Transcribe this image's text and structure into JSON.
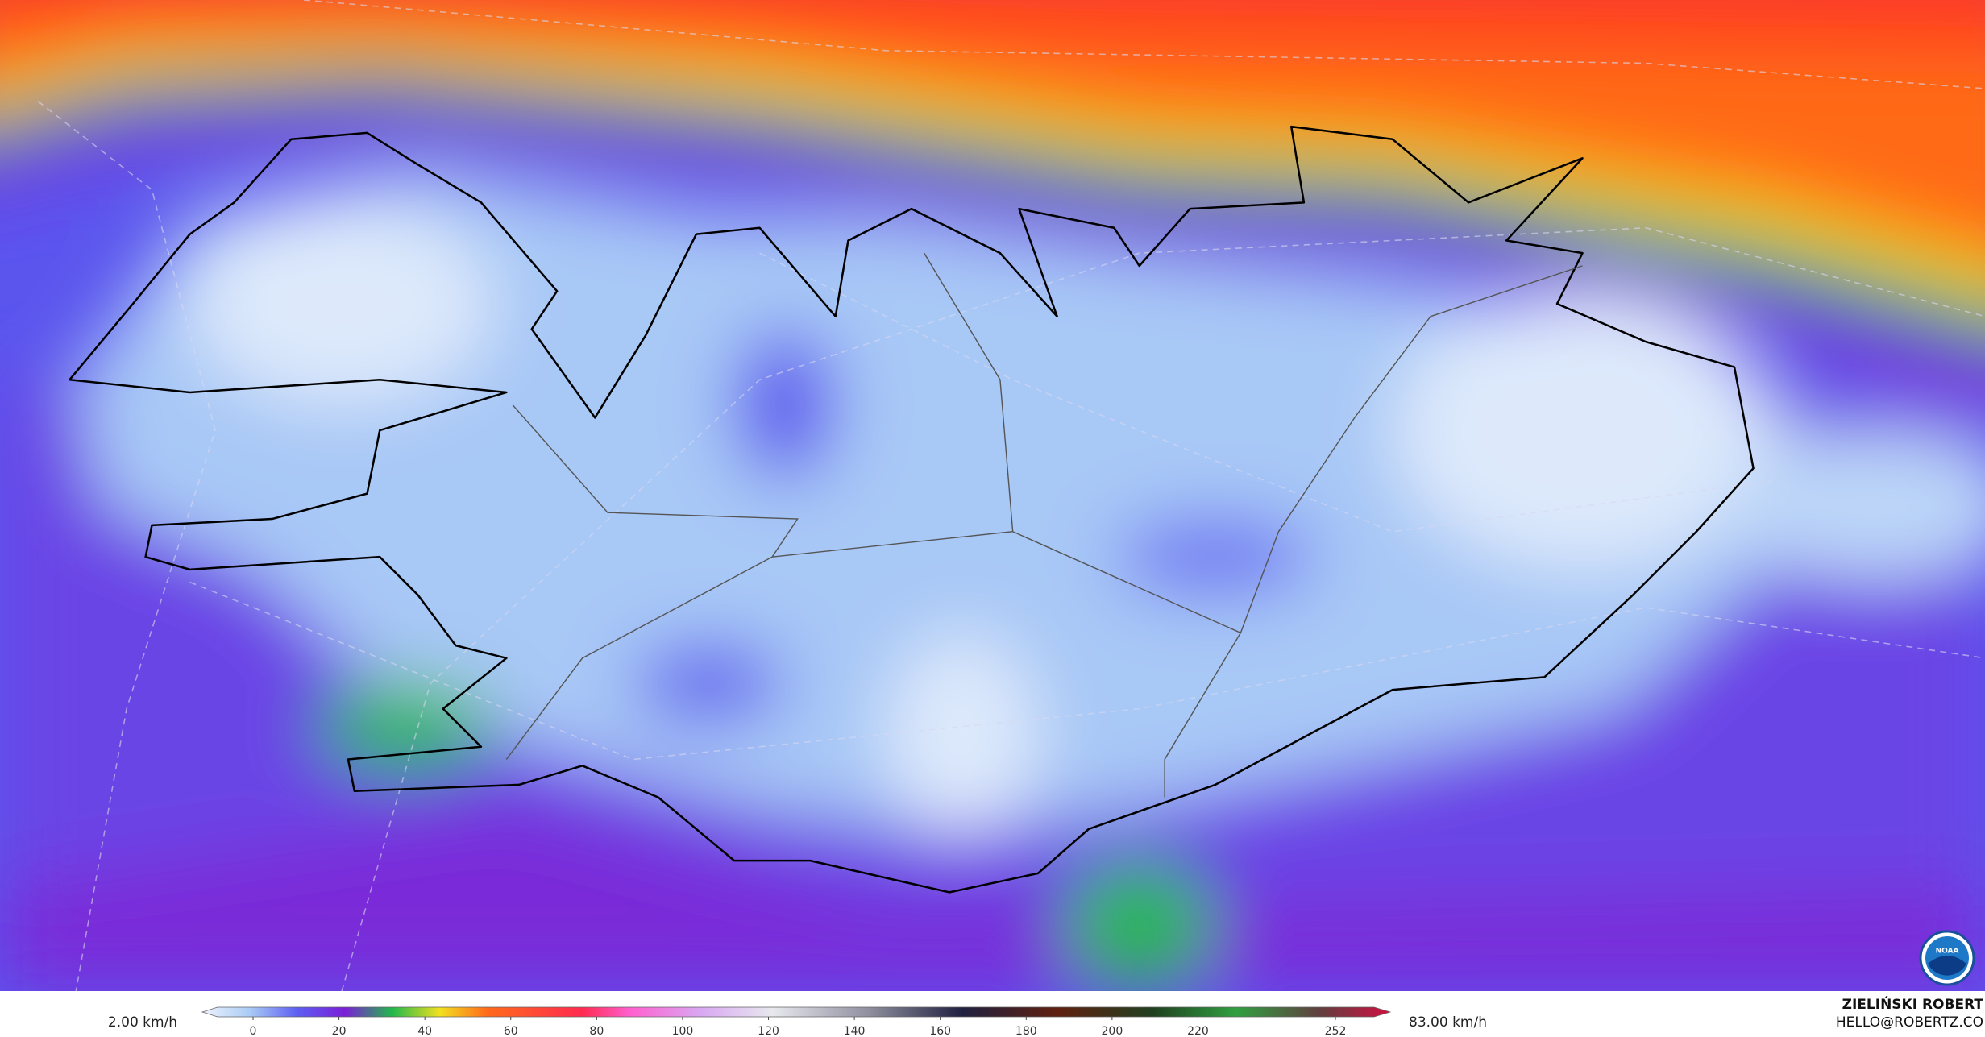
{
  "legend": {
    "min_label": "2.00 km/h",
    "max_label": "83.00 km/h",
    "ticks": [
      0,
      20,
      40,
      60,
      80,
      100,
      120,
      140,
      160,
      180,
      200,
      220,
      252
    ]
  },
  "credit": {
    "name": "ZIELIŃSKI ROBERT",
    "email": "HELLO@ROBERTZ.CO"
  },
  "logo": "NOAA"
}
